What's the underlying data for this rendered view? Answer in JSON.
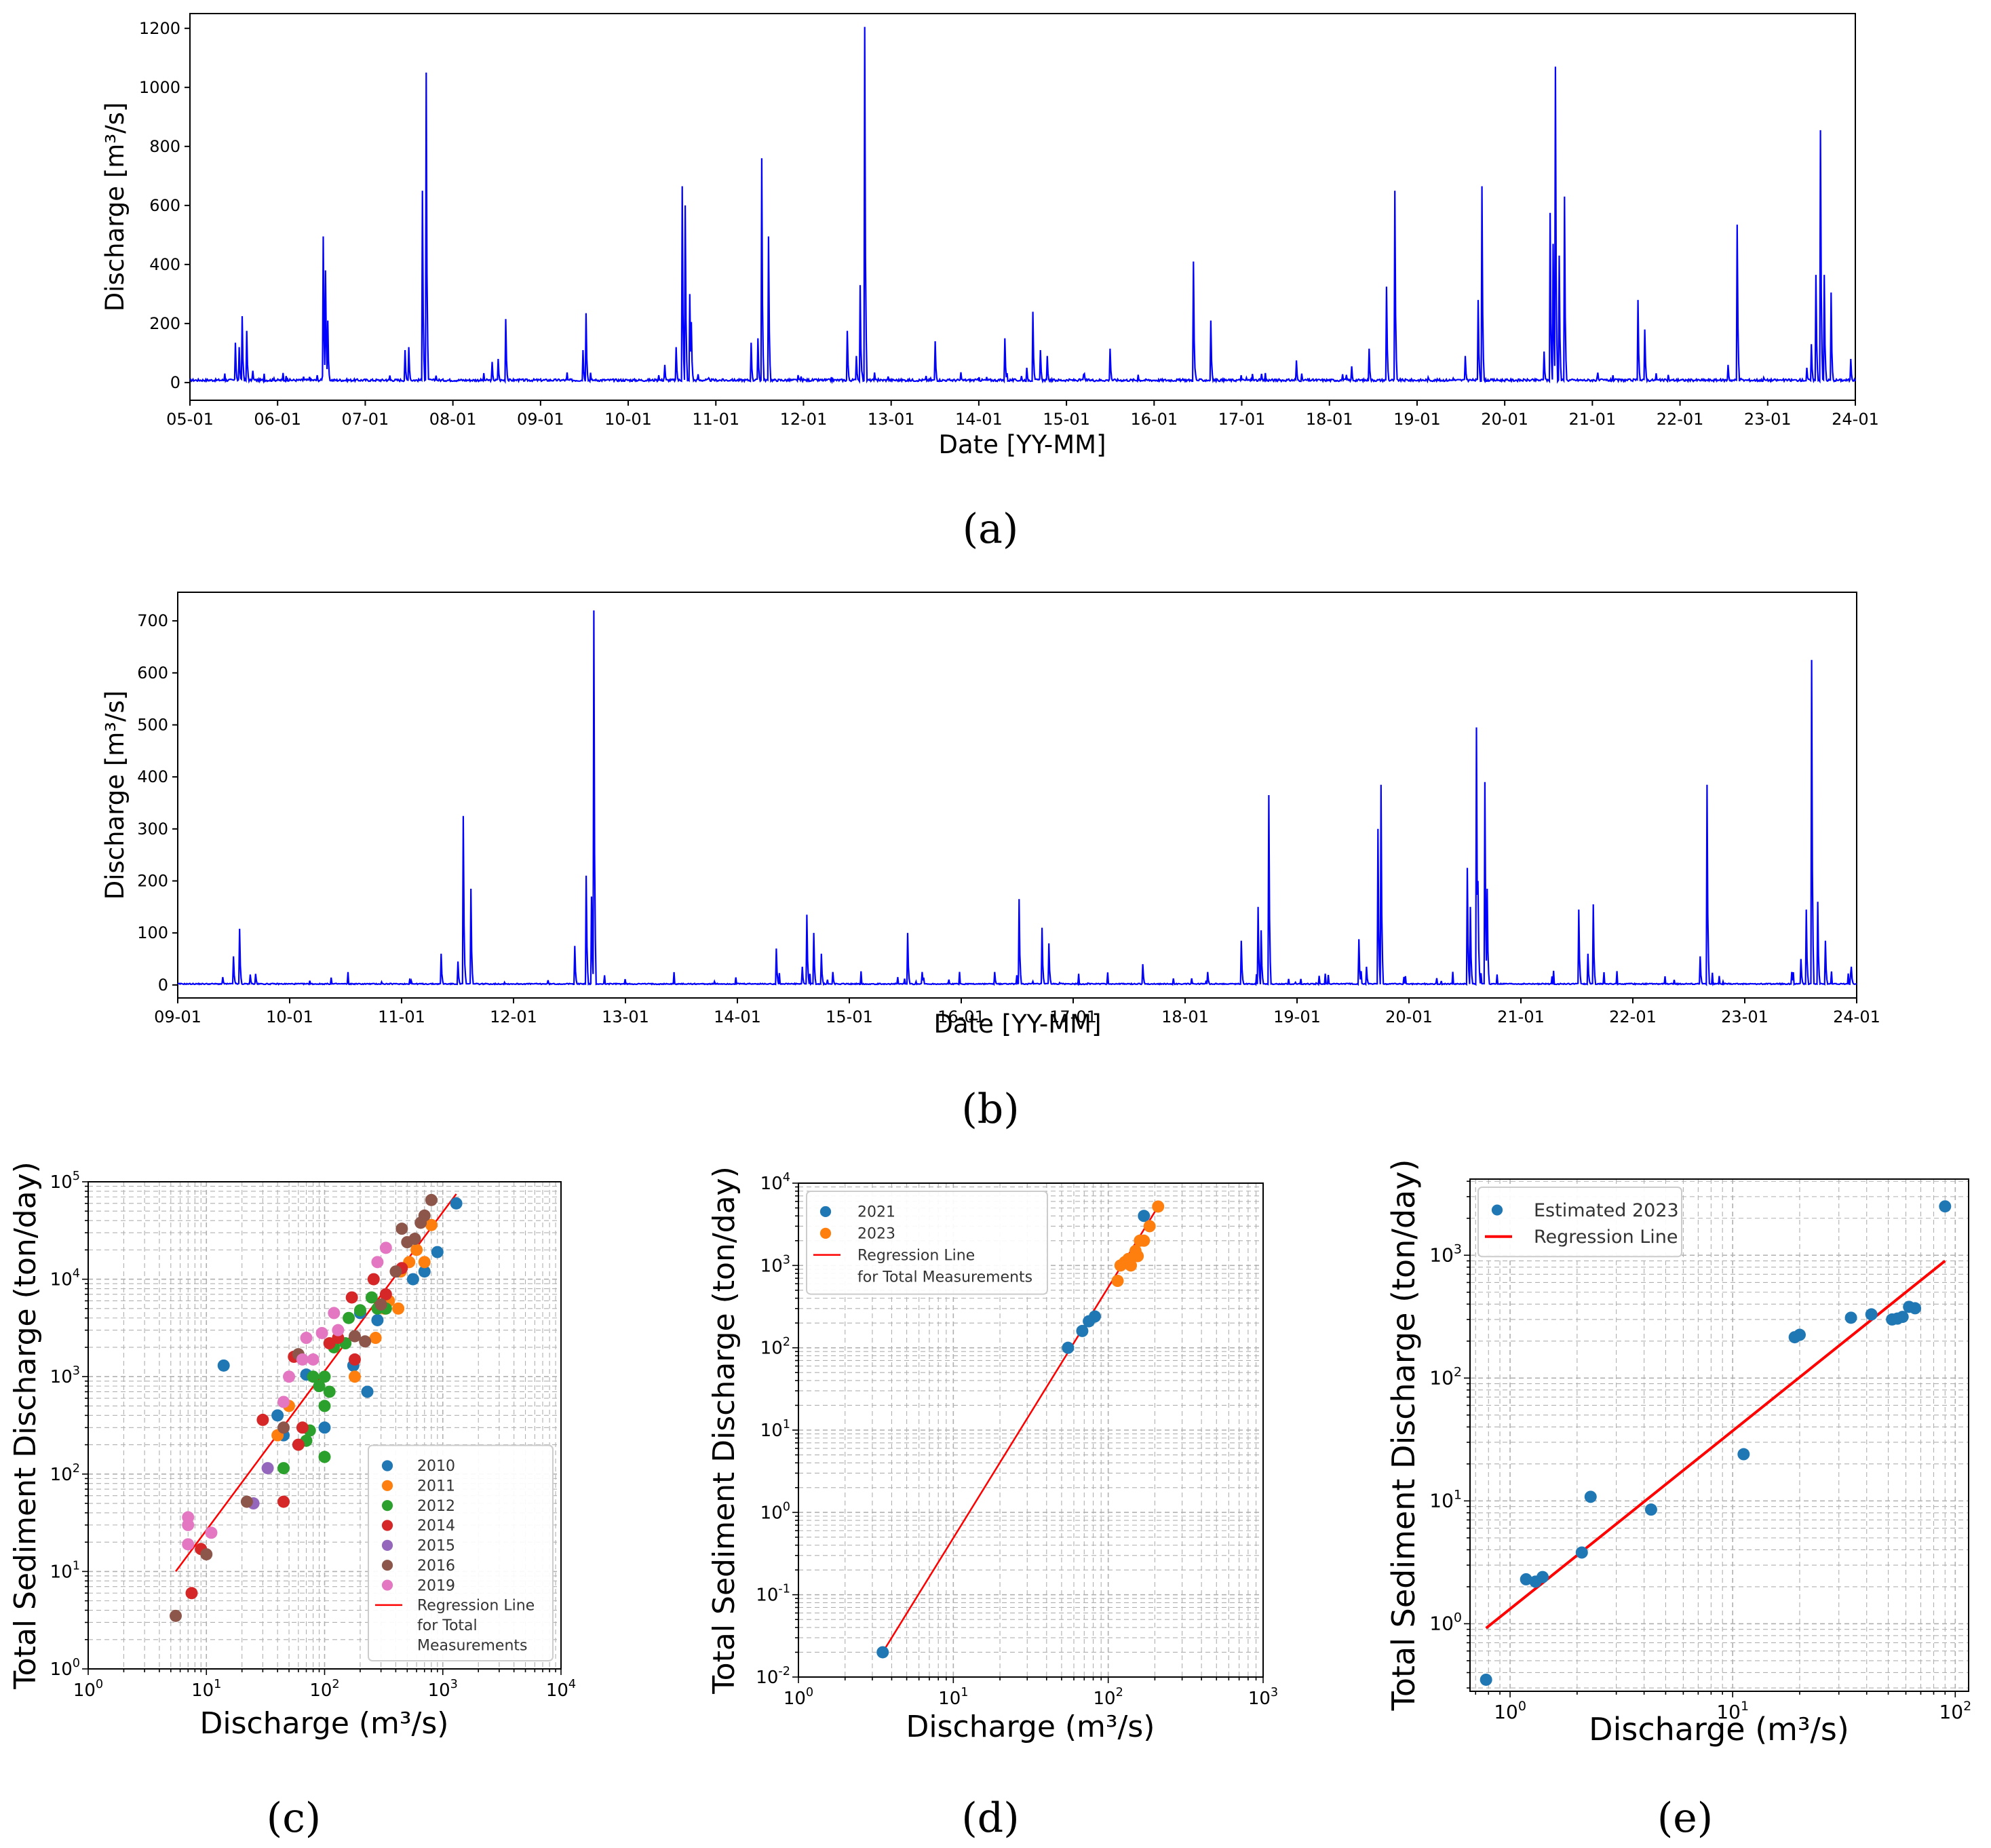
{
  "colors": {
    "series_line": "#0000ff",
    "regression": "#ff0000",
    "axis": "#000000",
    "grid": "#b0b0b0",
    "y2010": "#1f77b4",
    "y2011": "#ff7f0e",
    "y2012": "#2ca02c",
    "y2014": "#d62728",
    "y2015": "#9467bd",
    "y2016": "#8c564b",
    "y2019": "#e377c2"
  },
  "chart_data": [
    {
      "id": "a",
      "panel_label": "(a)",
      "type": "line",
      "xlabel": "Date [YY-MM]",
      "ylabel": "Discharge [m³/s]",
      "x_ticks": [
        "05-01",
        "06-01",
        "07-01",
        "08-01",
        "09-01",
        "10-01",
        "11-01",
        "12-01",
        "13-01",
        "14-01",
        "15-01",
        "16-01",
        "17-01",
        "18-01",
        "19-01",
        "20-01",
        "21-01",
        "22-01",
        "23-01",
        "24-01"
      ],
      "y_ticks": [
        "0",
        "200",
        "400",
        "600",
        "800",
        "1000",
        "1200"
      ],
      "xlim": [
        2005.0,
        2024.0
      ],
      "ylim": [
        -60,
        1250
      ],
      "baseline": 8,
      "peaks": [
        [
          2005.52,
          135
        ],
        [
          2005.56,
          120
        ],
        [
          2005.6,
          225
        ],
        [
          2005.65,
          175
        ],
        [
          2005.72,
          40
        ],
        [
          2006.3,
          20
        ],
        [
          2006.45,
          25
        ],
        [
          2006.52,
          495
        ],
        [
          2006.55,
          380
        ],
        [
          2006.57,
          210
        ],
        [
          2007.45,
          110
        ],
        [
          2007.5,
          120
        ],
        [
          2007.65,
          650
        ],
        [
          2007.7,
          1050
        ],
        [
          2008.45,
          70
        ],
        [
          2008.52,
          80
        ],
        [
          2008.6,
          215
        ],
        [
          2009.48,
          110
        ],
        [
          2009.52,
          235
        ],
        [
          2010.35,
          25
        ],
        [
          2010.42,
          60
        ],
        [
          2010.55,
          120
        ],
        [
          2010.62,
          665
        ],
        [
          2010.65,
          600
        ],
        [
          2010.7,
          300
        ],
        [
          2010.72,
          205
        ],
        [
          2011.4,
          135
        ],
        [
          2011.48,
          150
        ],
        [
          2011.52,
          760
        ],
        [
          2011.6,
          495
        ],
        [
          2012.5,
          175
        ],
        [
          2012.6,
          90
        ],
        [
          2012.65,
          330
        ],
        [
          2012.7,
          1205
        ],
        [
          2013.5,
          140
        ],
        [
          2013.8,
          35
        ],
        [
          2014.3,
          150
        ],
        [
          2014.55,
          50
        ],
        [
          2014.62,
          240
        ],
        [
          2014.7,
          110
        ],
        [
          2014.78,
          90
        ],
        [
          2015.5,
          115
        ],
        [
          2016.45,
          410
        ],
        [
          2016.65,
          210
        ],
        [
          2017.62,
          75
        ],
        [
          2018.25,
          55
        ],
        [
          2018.45,
          115
        ],
        [
          2018.65,
          325
        ],
        [
          2018.75,
          650
        ],
        [
          2019.55,
          90
        ],
        [
          2019.7,
          280
        ],
        [
          2019.74,
          665
        ],
        [
          2020.45,
          105
        ],
        [
          2020.52,
          575
        ],
        [
          2020.55,
          470
        ],
        [
          2020.58,
          1070
        ],
        [
          2020.62,
          430
        ],
        [
          2020.68,
          630
        ],
        [
          2021.52,
          280
        ],
        [
          2021.6,
          180
        ],
        [
          2022.55,
          60
        ],
        [
          2022.65,
          535
        ],
        [
          2023.45,
          50
        ],
        [
          2023.5,
          130
        ],
        [
          2023.55,
          365
        ],
        [
          2023.6,
          855
        ],
        [
          2023.65,
          365
        ],
        [
          2023.72,
          305
        ],
        [
          2023.95,
          80
        ]
      ]
    },
    {
      "id": "b",
      "panel_label": "(b)",
      "type": "line",
      "xlabel": "Date [YY-MM]",
      "ylabel": "Discharge [m³/s]",
      "x_ticks": [
        "09-01",
        "10-01",
        "11-01",
        "12-01",
        "13-01",
        "14-01",
        "15-01",
        "16-01",
        "17-01",
        "18-01",
        "19-01",
        "20-01",
        "21-01",
        "22-01",
        "23-01",
        "24-01"
      ],
      "y_ticks": [
        "0",
        "100",
        "200",
        "300",
        "400",
        "500",
        "600",
        "700"
      ],
      "xlim": [
        2009.0,
        2024.0
      ],
      "ylim": [
        -25,
        755
      ],
      "baseline": 2,
      "peaks": [
        [
          2009.4,
          15
        ],
        [
          2009.5,
          55
        ],
        [
          2009.55,
          108
        ],
        [
          2009.65,
          20
        ],
        [
          2011.35,
          60
        ],
        [
          2011.5,
          45
        ],
        [
          2011.55,
          325
        ],
        [
          2011.62,
          185
        ],
        [
          2012.55,
          75
        ],
        [
          2012.65,
          210
        ],
        [
          2012.7,
          170
        ],
        [
          2012.72,
          720
        ],
        [
          2014.35,
          70
        ],
        [
          2014.58,
          35
        ],
        [
          2014.62,
          135
        ],
        [
          2014.68,
          100
        ],
        [
          2014.75,
          60
        ],
        [
          2014.85,
          25
        ],
        [
          2015.52,
          100
        ],
        [
          2015.65,
          25
        ],
        [
          2016.3,
          25
        ],
        [
          2016.52,
          165
        ],
        [
          2016.72,
          110
        ],
        [
          2016.78,
          80
        ],
        [
          2017.62,
          40
        ],
        [
          2018.2,
          25
        ],
        [
          2018.5,
          85
        ],
        [
          2018.65,
          150
        ],
        [
          2018.68,
          105
        ],
        [
          2018.75,
          365
        ],
        [
          2019.55,
          88
        ],
        [
          2019.62,
          35
        ],
        [
          2019.72,
          300
        ],
        [
          2019.75,
          385
        ],
        [
          2020.52,
          225
        ],
        [
          2020.55,
          150
        ],
        [
          2020.6,
          495
        ],
        [
          2020.62,
          200
        ],
        [
          2020.68,
          390
        ],
        [
          2020.7,
          185
        ],
        [
          2021.52,
          145
        ],
        [
          2021.6,
          60
        ],
        [
          2021.65,
          155
        ],
        [
          2022.6,
          55
        ],
        [
          2022.66,
          385
        ],
        [
          2023.42,
          25
        ],
        [
          2023.5,
          50
        ],
        [
          2023.55,
          145
        ],
        [
          2023.6,
          625
        ],
        [
          2023.65,
          160
        ],
        [
          2023.72,
          85
        ],
        [
          2023.95,
          35
        ]
      ]
    },
    {
      "id": "c",
      "panel_label": "(c)",
      "type": "scatter",
      "xscale": "log",
      "yscale": "log",
      "xlabel": "Discharge (m³/s)",
      "ylabel": "Total Sediment Discharge (ton/day)",
      "x_tick_exp": [
        "0",
        "1",
        "2",
        "3",
        "4"
      ],
      "y_tick_exp": [
        "0",
        "1",
        "2",
        "3",
        "4",
        "5"
      ],
      "xlim_log": [
        0,
        4
      ],
      "ylim_log": [
        0,
        5
      ],
      "legend_loc": "lower-right",
      "regression": {
        "x": [
          5.5,
          1300
        ],
        "y": [
          10,
          75000
        ],
        "label": "Regression Line\nfor Total\nMeasurements"
      },
      "series": [
        {
          "name": "2010",
          "color_key": "y2010",
          "points": [
            [
              14,
              1300
            ],
            [
              40,
              400
            ],
            [
              45,
              250
            ],
            [
              70,
              1050
            ],
            [
              100,
              300
            ],
            [
              175,
              1300
            ],
            [
              230,
              700
            ],
            [
              280,
              3800
            ],
            [
              330,
              5500
            ],
            [
              420,
              12000
            ],
            [
              560,
              10000
            ],
            [
              700,
              12000
            ],
            [
              900,
              19000
            ],
            [
              1300,
              60000
            ],
            [
              200,
              4500
            ]
          ]
        },
        {
          "name": "2011",
          "color_key": "y2011",
          "points": [
            [
              40,
              250
            ],
            [
              50,
              500
            ],
            [
              180,
              1000
            ],
            [
              270,
              2500
            ],
            [
              320,
              5000
            ],
            [
              350,
              6000
            ],
            [
              420,
              5000
            ],
            [
              440,
              12000
            ],
            [
              520,
              15000
            ],
            [
              600,
              20000
            ],
            [
              700,
              15000
            ],
            [
              800,
              36000
            ]
          ]
        },
        {
          "name": "2012",
          "color_key": "y2012",
          "points": [
            [
              45,
              115
            ],
            [
              70,
              220
            ],
            [
              75,
              280
            ],
            [
              80,
              1000
            ],
            [
              90,
              800
            ],
            [
              100,
              500
            ],
            [
              100,
              150
            ],
            [
              100,
              1000
            ],
            [
              110,
              700
            ],
            [
              120,
              2000
            ],
            [
              150,
              2200
            ],
            [
              160,
              4000
            ],
            [
              200,
              4800
            ],
            [
              250,
              6500
            ],
            [
              280,
              5000
            ],
            [
              330,
              5000
            ]
          ]
        },
        {
          "name": "2014",
          "color_key": "y2014",
          "points": [
            [
              7.5,
              6
            ],
            [
              9,
              17
            ],
            [
              30,
              360
            ],
            [
              45,
              52
            ],
            [
              55,
              1600
            ],
            [
              60,
              200
            ],
            [
              65,
              300
            ],
            [
              110,
              2200
            ],
            [
              130,
              2500
            ],
            [
              170,
              6500
            ],
            [
              180,
              1500
            ],
            [
              260,
              10000
            ],
            [
              330,
              7000
            ],
            [
              450,
              13000
            ]
          ]
        },
        {
          "name": "2015",
          "color_key": "y2015",
          "points": [
            [
              25,
              50
            ],
            [
              33,
              115
            ]
          ]
        },
        {
          "name": "2016",
          "color_key": "y2016",
          "points": [
            [
              5.5,
              3.5
            ],
            [
              10,
              15
            ],
            [
              22,
              52
            ],
            [
              45,
              300
            ],
            [
              60,
              1700
            ],
            [
              180,
              2600
            ],
            [
              220,
              2300
            ],
            [
              300,
              5500
            ],
            [
              400,
              12000
            ],
            [
              450,
              33000
            ],
            [
              500,
              24000
            ],
            [
              580,
              26000
            ],
            [
              650,
              38000
            ],
            [
              700,
              45000
            ],
            [
              800,
              65000
            ]
          ]
        },
        {
          "name": "2019",
          "color_key": "y2019",
          "points": [
            [
              7,
              19
            ],
            [
              7,
              30
            ],
            [
              7,
              36
            ],
            [
              11,
              25
            ],
            [
              45,
              550
            ],
            [
              50,
              1000
            ],
            [
              65,
              1500
            ],
            [
              70,
              2500
            ],
            [
              80,
              1500
            ],
            [
              95,
              2800
            ],
            [
              120,
              4500
            ],
            [
              130,
              3000
            ],
            [
              330,
              21000
            ],
            [
              280,
              15000
            ]
          ]
        }
      ]
    },
    {
      "id": "d",
      "panel_label": "(d)",
      "type": "scatter",
      "xscale": "log",
      "yscale": "log",
      "xlabel": "Discharge (m³/s)",
      "ylabel": "Total Sediment Discharge (ton/day)",
      "x_tick_exp": [
        "0",
        "1",
        "2",
        "3"
      ],
      "y_tick_exp": [
        "-2",
        "-1",
        "0",
        "1",
        "2",
        "3",
        "4"
      ],
      "xlim_log": [
        0,
        3
      ],
      "ylim_log": [
        -2,
        4
      ],
      "legend_loc": "upper-left",
      "regression": {
        "x": [
          3.5,
          210
        ],
        "y": [
          0.02,
          5200
        ],
        "label": "Regression Line\nfor Total Measurements"
      },
      "series": [
        {
          "name": "2021",
          "color_key": "y2010",
          "points": [
            [
              3.5,
              0.02
            ],
            [
              55,
              100
            ],
            [
              68,
              160
            ],
            [
              75,
              210
            ],
            [
              82,
              240
            ],
            [
              170,
              4000
            ]
          ]
        },
        {
          "name": "2023",
          "color_key": "y2011",
          "points": [
            [
              115,
              650
            ],
            [
              120,
              1000
            ],
            [
              128,
              1100
            ],
            [
              135,
              1200
            ],
            [
              140,
              1000
            ],
            [
              150,
              1500
            ],
            [
              155,
              1300
            ],
            [
              160,
              2000
            ],
            [
              170,
              2000
            ],
            [
              185,
              3000
            ],
            [
              210,
              5200
            ]
          ]
        }
      ]
    },
    {
      "id": "e",
      "panel_label": "(e)",
      "type": "scatter",
      "xscale": "log",
      "yscale": "log",
      "xlabel": "Discharge (m³/s)",
      "ylabel": "Total Sediment Discharge (ton/day)",
      "x_tick_exp": [
        "0",
        "1",
        "2"
      ],
      "y_tick_exp": [
        "0",
        "1",
        "2",
        "3"
      ],
      "xlim_log": [
        -0.18,
        2.06
      ],
      "ylim_log": [
        -0.55,
        3.62
      ],
      "legend_loc": "upper-left",
      "regression": {
        "x": [
          0.78,
          90
        ],
        "y": [
          0.92,
          900
        ],
        "label": "Regression Line"
      },
      "series": [
        {
          "name": "Estimated 2023",
          "color_key": "y2010",
          "points": [
            [
              0.78,
              0.35
            ],
            [
              1.18,
              2.3
            ],
            [
              1.3,
              2.2
            ],
            [
              1.4,
              2.4
            ],
            [
              2.1,
              3.8
            ],
            [
              2.3,
              10.8
            ],
            [
              4.3,
              8.5
            ],
            [
              11.2,
              24
            ],
            [
              19,
              215
            ],
            [
              20,
              225
            ],
            [
              34,
              310
            ],
            [
              42,
              330
            ],
            [
              52,
              300
            ],
            [
              55,
              305
            ],
            [
              58,
              315
            ],
            [
              62,
              380
            ],
            [
              66,
              370
            ],
            [
              90,
              2500
            ]
          ]
        }
      ]
    }
  ]
}
